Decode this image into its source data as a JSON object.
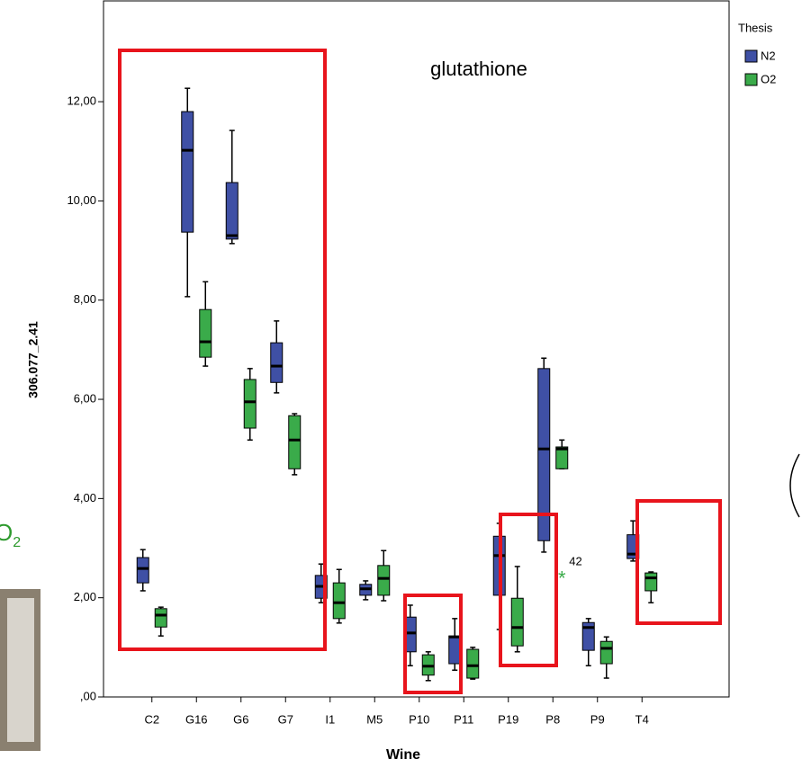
{
  "chart_data": {
    "type": "box",
    "annotation": "glutathione",
    "y_label": "306.077_2.41",
    "x_label": "Wine",
    "legend_title": "Thesis",
    "side_label": "O",
    "side_label_sub": "2",
    "categories": [
      "C2",
      "G16",
      "G6",
      "G7",
      "I1",
      "M5",
      "P10",
      "P11",
      "P19",
      "P8",
      "P9",
      "T4"
    ],
    "ylim": [
      0,
      14.05
    ],
    "yticks": [
      {
        "value": 0,
        "label": ",00"
      },
      {
        "value": 2,
        "label": "2,00"
      },
      {
        "value": 4,
        "label": "4,00"
      },
      {
        "value": 6,
        "label": "6,00"
      },
      {
        "value": 8,
        "label": "8,00"
      },
      {
        "value": 10,
        "label": "10,00"
      },
      {
        "value": 12,
        "label": "12,00"
      }
    ],
    "series": [
      {
        "name": "N2",
        "color": "#3f50a5",
        "values": [
          [
            2.14,
            2.3,
            2.59,
            2.81,
            2.97
          ],
          [
            8.07,
            9.37,
            11.02,
            11.8,
            12.27
          ],
          [
            9.14,
            9.23,
            9.3,
            10.37,
            11.42
          ],
          [
            6.13,
            6.34,
            6.67,
            7.14,
            7.58
          ],
          [
            1.9,
            1.99,
            2.23,
            2.45,
            2.68
          ],
          [
            1.96,
            2.05,
            2.18,
            2.27,
            2.34
          ],
          [
            0.63,
            0.91,
            1.29,
            1.61,
            1.85
          ],
          [
            0.54,
            0.67,
            1.21,
            1.23,
            1.58
          ],
          [
            1.36,
            2.05,
            2.85,
            3.24,
            3.5
          ],
          [
            2.92,
            3.15,
            5.0,
            6.62,
            6.83
          ],
          [
            0.63,
            0.94,
            1.4,
            1.5,
            1.58
          ],
          [
            2.74,
            2.79,
            2.88,
            3.27,
            3.55
          ]
        ]
      },
      {
        "name": "O2",
        "color": "#3aab4a",
        "values": [
          [
            1.23,
            1.41,
            1.65,
            1.78,
            1.81
          ],
          [
            6.67,
            6.85,
            7.16,
            7.81,
            8.37
          ],
          [
            5.18,
            5.42,
            5.95,
            6.4,
            6.62
          ],
          [
            4.48,
            4.6,
            5.18,
            5.67,
            5.71
          ],
          [
            1.49,
            1.58,
            1.9,
            2.3,
            2.57
          ],
          [
            1.94,
            2.05,
            2.39,
            2.65,
            2.95
          ],
          [
            0.33,
            0.44,
            0.62,
            0.85,
            0.91
          ],
          [
            0.36,
            0.38,
            0.63,
            0.96,
            1.0
          ],
          [
            0.91,
            1.03,
            1.4,
            1.99,
            2.63
          ],
          [
            4.6,
            4.6,
            5.0,
            5.04,
            5.18
          ],
          [
            0.38,
            0.67,
            0.98,
            1.12,
            1.21
          ],
          [
            1.9,
            2.14,
            2.4,
            2.5,
            2.52
          ]
        ],
        "outliers": [
          {
            "category": "P8",
            "value": 2.45,
            "label": "42"
          }
        ]
      }
    ]
  }
}
